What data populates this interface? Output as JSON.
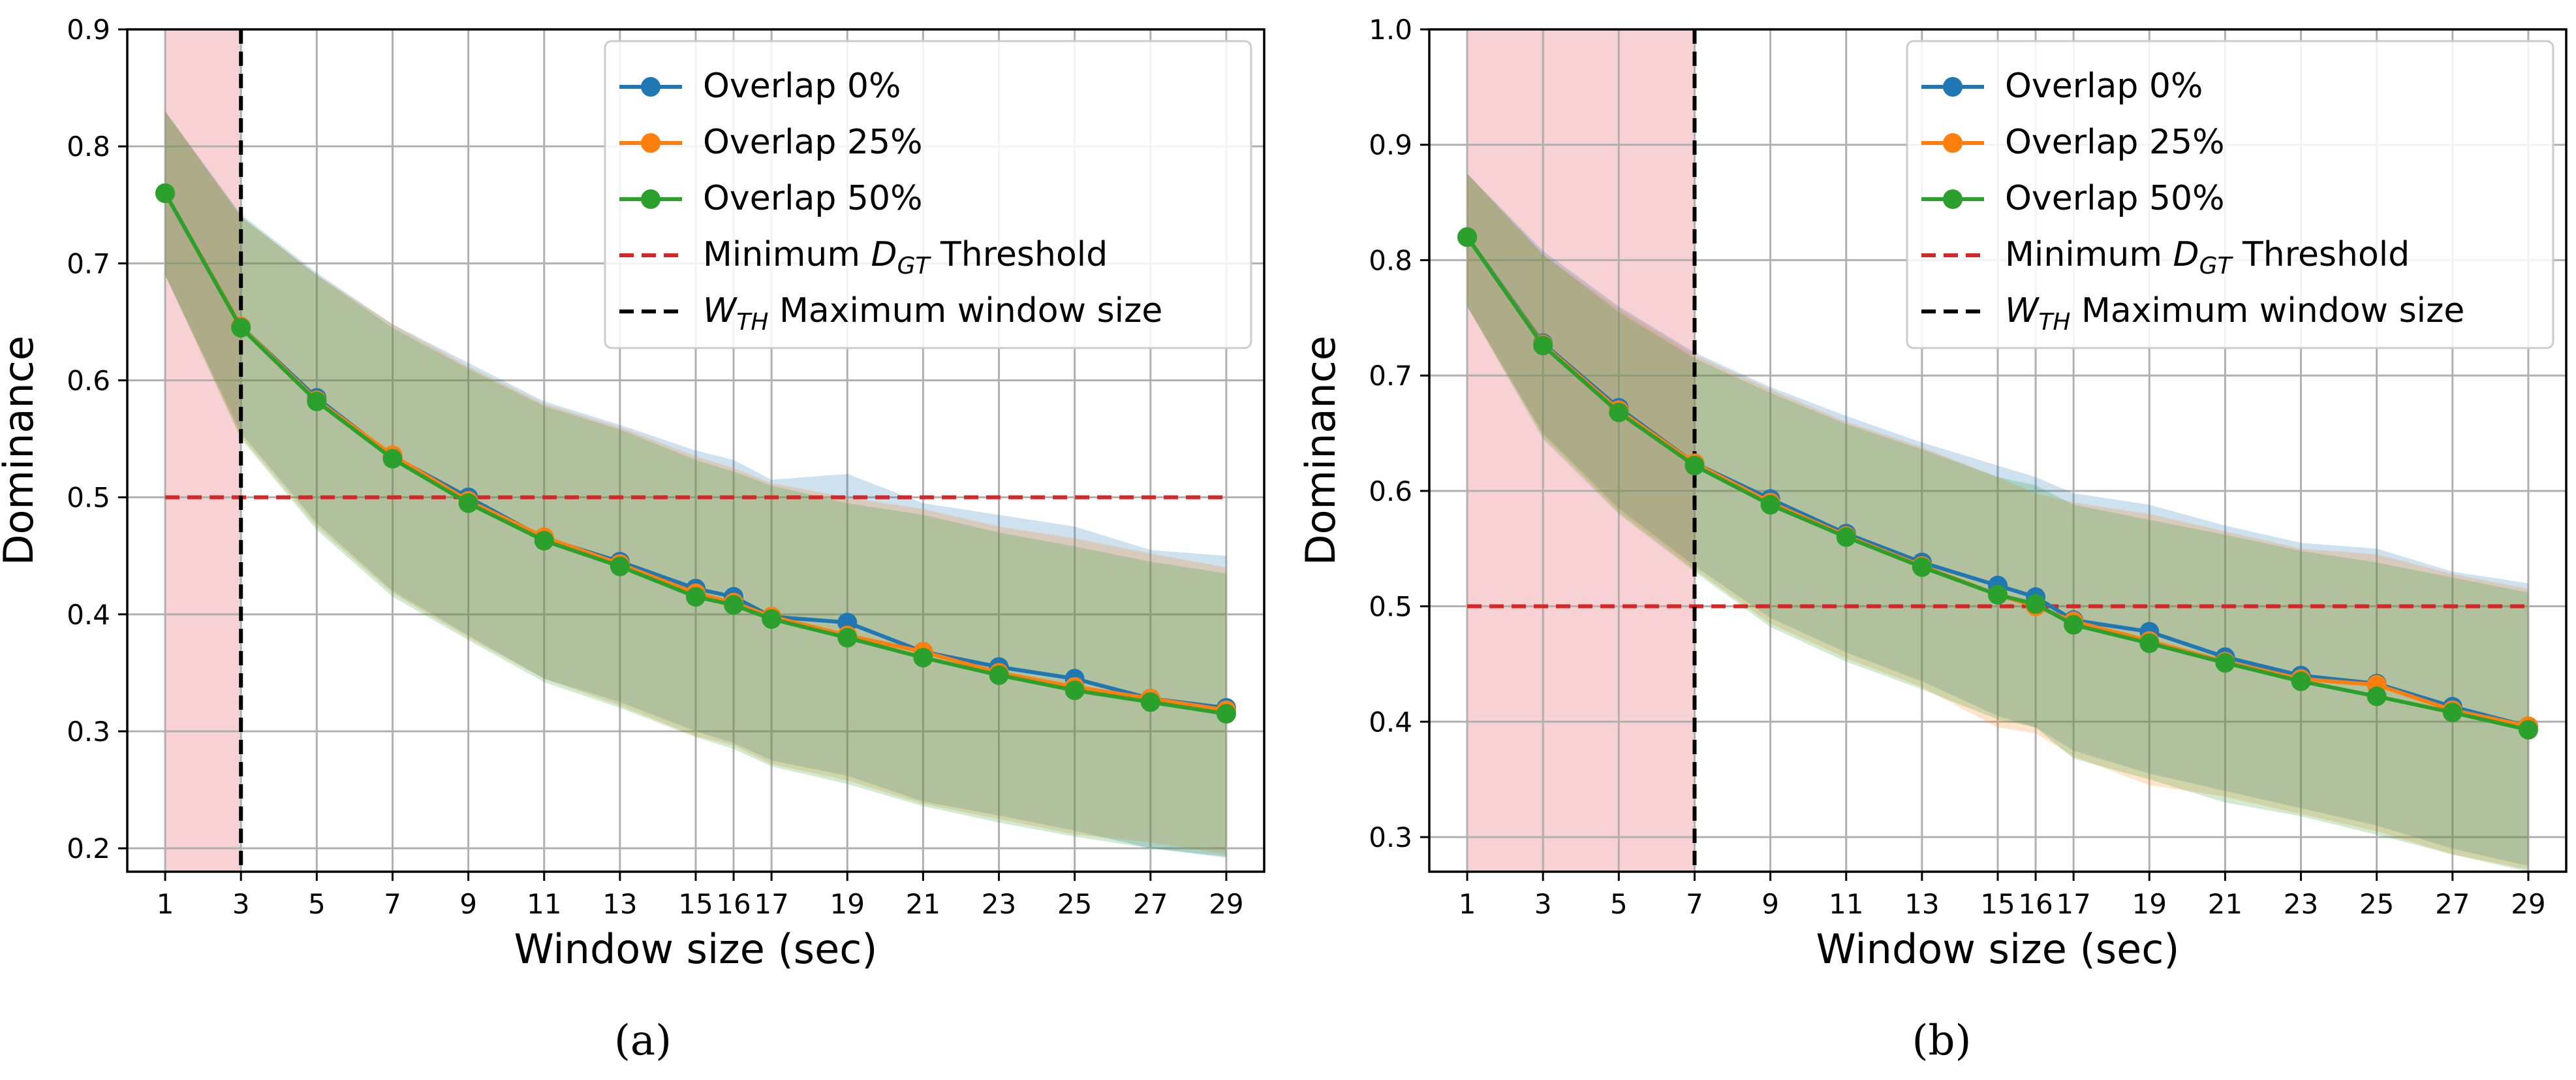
{
  "figure": {
    "captions": [
      "(a)",
      "(b)"
    ]
  },
  "legend_labels": {
    "threshold_prefix": "Minimum ",
    "threshold_symbol": "D",
    "threshold_subscript": "GT",
    "threshold_suffix": " Threshold",
    "window_symbol": "W",
    "window_subscript": "TH",
    "window_suffix": " Maximum window size"
  },
  "colors": {
    "overlap_0": "#1f77b4",
    "overlap_25": "#ff7f0e",
    "overlap_50": "#2ca02c",
    "threshold": "#d62728",
    "window_line": "#000000",
    "shade": "#f4c2c6",
    "grid": "#b0b0b0"
  },
  "chart_data": [
    {
      "type": "line",
      "panel": "(a)",
      "title": "",
      "xlabel": "Window size (sec)",
      "ylabel": "Dominance",
      "xlim": [
        0,
        30
      ],
      "ylim": [
        0.18,
        0.9
      ],
      "xticks": [
        1,
        3,
        5,
        7,
        9,
        11,
        13,
        15,
        16,
        17,
        19,
        21,
        23,
        25,
        27,
        29
      ],
      "xtick_labels": [
        "1",
        "3",
        "5",
        "7",
        "9",
        "11",
        "13",
        "15",
        "16",
        "17",
        "19",
        "21",
        "23",
        "25",
        "27",
        "29"
      ],
      "yticks": [
        0.2,
        0.3,
        0.4,
        0.5,
        0.6,
        0.7,
        0.8,
        0.9
      ],
      "ytick_labels": [
        "0.2",
        "0.3",
        "0.4",
        "0.5",
        "0.6",
        "0.7",
        "0.8",
        "0.9"
      ],
      "grid": true,
      "legend_position": "top-right",
      "x": [
        1,
        3,
        5,
        7,
        9,
        11,
        13,
        15,
        16,
        17,
        19,
        21,
        23,
        25,
        27,
        29
      ],
      "series": [
        {
          "name": "Overlap 0%",
          "color": "#1f77b4",
          "values": [
            0.76,
            0.646,
            0.585,
            0.535,
            0.5,
            0.465,
            0.445,
            0.422,
            0.415,
            0.398,
            0.393,
            0.368,
            0.355,
            0.345,
            0.328,
            0.32
          ],
          "lower": [
            0.69,
            0.555,
            0.478,
            0.42,
            0.382,
            0.345,
            0.325,
            0.3,
            0.29,
            0.275,
            0.262,
            0.24,
            0.228,
            0.215,
            0.2,
            0.192
          ],
          "upper": [
            0.83,
            0.742,
            0.692,
            0.648,
            0.615,
            0.582,
            0.562,
            0.54,
            0.532,
            0.515,
            0.52,
            0.495,
            0.485,
            0.475,
            0.455,
            0.45
          ]
        },
        {
          "name": "Overlap 25%",
          "color": "#ff7f0e",
          "values": [
            0.76,
            0.646,
            0.583,
            0.536,
            0.497,
            0.466,
            0.443,
            0.418,
            0.41,
            0.398,
            0.382,
            0.368,
            0.35,
            0.338,
            0.328,
            0.318
          ],
          "lower": [
            0.69,
            0.552,
            0.475,
            0.418,
            0.38,
            0.345,
            0.322,
            0.296,
            0.288,
            0.272,
            0.258,
            0.238,
            0.225,
            0.212,
            0.205,
            0.195
          ],
          "upper": [
            0.83,
            0.74,
            0.69,
            0.648,
            0.612,
            0.58,
            0.56,
            0.535,
            0.525,
            0.512,
            0.5,
            0.49,
            0.475,
            0.465,
            0.452,
            0.44
          ]
        },
        {
          "name": "Overlap 50%",
          "color": "#2ca02c",
          "values": [
            0.76,
            0.645,
            0.582,
            0.533,
            0.495,
            0.463,
            0.441,
            0.415,
            0.408,
            0.396,
            0.38,
            0.363,
            0.348,
            0.335,
            0.325,
            0.315
          ],
          "lower": [
            0.69,
            0.55,
            0.472,
            0.415,
            0.378,
            0.342,
            0.32,
            0.295,
            0.285,
            0.27,
            0.255,
            0.236,
            0.222,
            0.21,
            0.2,
            0.193
          ],
          "upper": [
            0.83,
            0.74,
            0.69,
            0.645,
            0.61,
            0.578,
            0.558,
            0.532,
            0.522,
            0.51,
            0.495,
            0.485,
            0.47,
            0.458,
            0.445,
            0.435
          ]
        }
      ],
      "threshold": {
        "value": 0.5,
        "x_range": [
          1,
          29
        ]
      },
      "window_threshold": {
        "x": 3
      },
      "shaded_region": [
        1,
        3
      ]
    },
    {
      "type": "line",
      "panel": "(b)",
      "title": "",
      "xlabel": "Window size (sec)",
      "ylabel": "Dominance",
      "xlim": [
        0,
        30
      ],
      "ylim": [
        0.27,
        1.0
      ],
      "xticks": [
        1,
        3,
        5,
        7,
        9,
        11,
        13,
        15,
        16,
        17,
        19,
        21,
        23,
        25,
        27,
        29
      ],
      "xtick_labels": [
        "1",
        "3",
        "5",
        "7",
        "9",
        "11",
        "13",
        "15",
        "16",
        "17",
        "19",
        "21",
        "23",
        "25",
        "27",
        "29"
      ],
      "yticks": [
        0.3,
        0.4,
        0.5,
        0.6,
        0.7,
        0.8,
        0.9,
        1.0
      ],
      "ytick_labels": [
        "0.3",
        "0.4",
        "0.5",
        "0.6",
        "0.7",
        "0.8",
        "0.9",
        "1.0"
      ],
      "grid": true,
      "legend_position": "top-right",
      "x": [
        1,
        3,
        5,
        7,
        9,
        11,
        13,
        15,
        16,
        17,
        19,
        21,
        23,
        25,
        27,
        29
      ],
      "series": [
        {
          "name": "Overlap 0%",
          "color": "#1f77b4",
          "values": [
            0.82,
            0.728,
            0.672,
            0.624,
            0.593,
            0.563,
            0.538,
            0.518,
            0.508,
            0.488,
            0.478,
            0.456,
            0.44,
            0.433,
            0.413,
            0.396
          ],
          "lower": [
            0.76,
            0.65,
            0.585,
            0.535,
            0.49,
            0.46,
            0.435,
            0.405,
            0.395,
            0.375,
            0.355,
            0.34,
            0.325,
            0.31,
            0.29,
            0.275
          ],
          "upper": [
            0.875,
            0.808,
            0.76,
            0.72,
            0.69,
            0.665,
            0.642,
            0.622,
            0.612,
            0.598,
            0.588,
            0.57,
            0.555,
            0.55,
            0.53,
            0.52
          ]
        },
        {
          "name": "Overlap 25%",
          "color": "#ff7f0e",
          "values": [
            0.82,
            0.727,
            0.67,
            0.624,
            0.59,
            0.561,
            0.535,
            0.51,
            0.5,
            0.487,
            0.47,
            0.452,
            0.437,
            0.432,
            0.41,
            0.396
          ],
          "lower": [
            0.76,
            0.648,
            0.582,
            0.532,
            0.485,
            0.455,
            0.43,
            0.395,
            0.39,
            0.37,
            0.345,
            0.335,
            0.32,
            0.305,
            0.285,
            0.272
          ],
          "upper": [
            0.875,
            0.805,
            0.758,
            0.718,
            0.688,
            0.66,
            0.638,
            0.612,
            0.598,
            0.59,
            0.58,
            0.565,
            0.55,
            0.545,
            0.528,
            0.515
          ]
        },
        {
          "name": "Overlap 50%",
          "color": "#2ca02c",
          "values": [
            0.82,
            0.726,
            0.668,
            0.622,
            0.588,
            0.56,
            0.534,
            0.51,
            0.502,
            0.484,
            0.468,
            0.451,
            0.435,
            0.422,
            0.408,
            0.393
          ],
          "lower": [
            0.76,
            0.645,
            0.58,
            0.53,
            0.482,
            0.452,
            0.428,
            0.402,
            0.395,
            0.368,
            0.35,
            0.33,
            0.318,
            0.302,
            0.285,
            0.27
          ],
          "upper": [
            0.875,
            0.805,
            0.755,
            0.715,
            0.685,
            0.658,
            0.636,
            0.612,
            0.605,
            0.588,
            0.575,
            0.562,
            0.548,
            0.538,
            0.525,
            0.512
          ]
        }
      ],
      "threshold": {
        "value": 0.5,
        "x_range": [
          1,
          29
        ]
      },
      "window_threshold": {
        "x": 7
      },
      "shaded_region": [
        1,
        7
      ]
    }
  ]
}
